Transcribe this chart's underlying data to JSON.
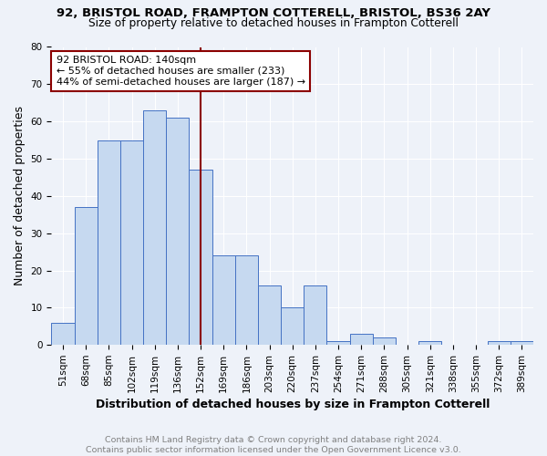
{
  "title_line1": "92, BRISTOL ROAD, FRAMPTON COTTERELL, BRISTOL, BS36 2AY",
  "title_line2": "Size of property relative to detached houses in Frampton Cotterell",
  "xlabel": "Distribution of detached houses by size in Frampton Cotterell",
  "ylabel": "Number of detached properties",
  "footnote": "Contains HM Land Registry data © Crown copyright and database right 2024.\nContains public sector information licensed under the Open Government Licence v3.0.",
  "categories": [
    "51sqm",
    "68sqm",
    "85sqm",
    "102sqm",
    "119sqm",
    "136sqm",
    "152sqm",
    "169sqm",
    "186sqm",
    "203sqm",
    "220sqm",
    "237sqm",
    "254sqm",
    "271sqm",
    "288sqm",
    "305sqm",
    "321sqm",
    "338sqm",
    "355sqm",
    "372sqm",
    "389sqm"
  ],
  "values": [
    6,
    37,
    55,
    55,
    63,
    61,
    47,
    24,
    24,
    16,
    10,
    16,
    1,
    3,
    2,
    0,
    1,
    0,
    0,
    1,
    1
  ],
  "bar_color": "#c6d9f0",
  "bar_edge_color": "#4472c4",
  "vline_x": 6.0,
  "vline_color": "#8B0000",
  "annotation_text": "92 BRISTOL ROAD: 140sqm\n← 55% of detached houses are smaller (233)\n44% of semi-detached houses are larger (187) →",
  "annotation_box_color": "white",
  "annotation_box_edgecolor": "#8B0000",
  "ylim": [
    0,
    80
  ],
  "yticks": [
    0,
    10,
    20,
    30,
    40,
    50,
    60,
    70,
    80
  ],
  "background_color": "#eef2f9",
  "grid_color": "white",
  "title_fontsize": 9.5,
  "subtitle_fontsize": 8.8,
  "axis_label_fontsize": 9,
  "tick_fontsize": 7.5,
  "footnote_fontsize": 6.8
}
